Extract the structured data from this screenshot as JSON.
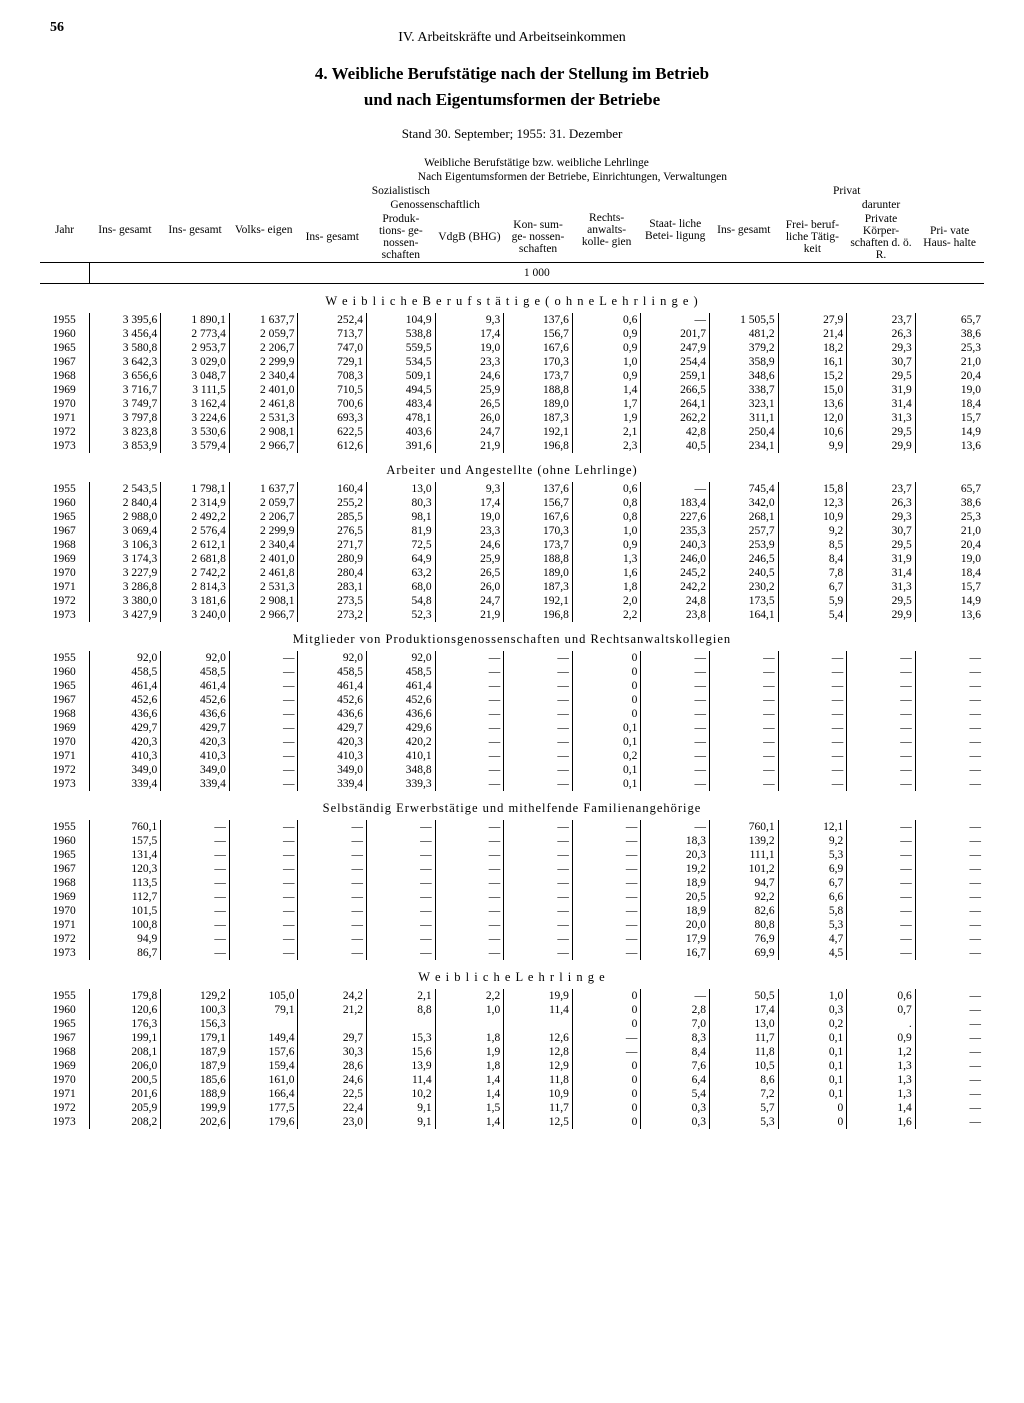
{
  "page_number": "56",
  "chapter": "IV. Arbeitskräfte und Arbeitseinkommen",
  "title_line1": "4. Weibliche Berufstätige nach der Stellung im Betrieb",
  "title_line2": "und nach Eigentumsformen der Betriebe",
  "standline": "Stand 30. September; 1955: 31. Dezember",
  "header_top": "Weibliche Berufstätige bzw. weibliche Lehrlinge",
  "header_eigentum": "Nach Eigentumsformen der Betriebe, Einrichtungen, Verwaltungen",
  "h_jahr": "Jahr",
  "h_insgesamt": "Ins-\ngesamt",
  "h_sozialistisch": "Sozialistisch",
  "h_genossen": "Genossenschaftlich",
  "h_volks": "Volks-\neigen",
  "h_prod": "Produk-\ntions-\nge-\nnossen-\nschaften",
  "h_vdgb": "VdgB\n(BHG)",
  "h_konsum": "Kon-\nsum-\nge-\nnossen-\nschaften",
  "h_rechts": "Rechts-\nanwalts-\nkolle-\ngien",
  "h_staat": "Staat-\nliche\nBetei-\nligung",
  "h_privat": "Privat",
  "h_darunter": "darunter",
  "h_frei": "Frei-\nberuf-\nliche\nTätig-\nkeit",
  "h_koerper": "Private\nKörper-\nschaften\nd. ö. R.",
  "h_haus": "Pri-\nvate\nHaus-\nhalte",
  "unit": "1 000",
  "sections": [
    {
      "title": "W e i b l i c h e  B e r u f s t ä t i g e  ( o h n e  L e h r l i n g e )",
      "rows": [
        [
          "1955",
          "3 395,6",
          "1 890,1",
          "1 637,7",
          "252,4",
          "104,9",
          "9,3",
          "137,6",
          "0,6",
          "—",
          "1 505,5",
          "27,9",
          "23,7",
          "65,7"
        ],
        [
          "1960",
          "3 456,4",
          "2 773,4",
          "2 059,7",
          "713,7",
          "538,8",
          "17,4",
          "156,7",
          "0,9",
          "201,7",
          "481,2",
          "21,4",
          "26,3",
          "38,6"
        ],
        [
          "1965",
          "3 580,8",
          "2 953,7",
          "2 206,7",
          "747,0",
          "559,5",
          "19,0",
          "167,6",
          "0,9",
          "247,9",
          "379,2",
          "18,2",
          "29,3",
          "25,3"
        ],
        [
          "1967",
          "3 642,3",
          "3 029,0",
          "2 299,9",
          "729,1",
          "534,5",
          "23,3",
          "170,3",
          "1,0",
          "254,4",
          "358,9",
          "16,1",
          "30,7",
          "21,0"
        ],
        [
          "1968",
          "3 656,6",
          "3 048,7",
          "2 340,4",
          "708,3",
          "509,1",
          "24,6",
          "173,7",
          "0,9",
          "259,1",
          "348,6",
          "15,2",
          "29,5",
          "20,4"
        ],
        [
          "1969",
          "3 716,7",
          "3 111,5",
          "2 401,0",
          "710,5",
          "494,5",
          "25,9",
          "188,8",
          "1,4",
          "266,5",
          "338,7",
          "15,0",
          "31,9",
          "19,0"
        ],
        [
          "1970",
          "3 749,7",
          "3 162,4",
          "2 461,8",
          "700,6",
          "483,4",
          "26,5",
          "189,0",
          "1,7",
          "264,1",
          "323,1",
          "13,6",
          "31,4",
          "18,4"
        ],
        [
          "1971",
          "3 797,8",
          "3 224,6",
          "2 531,3",
          "693,3",
          "478,1",
          "26,0",
          "187,3",
          "1,9",
          "262,2",
          "311,1",
          "12,0",
          "31,3",
          "15,7"
        ],
        [
          "1972",
          "3 823,8",
          "3 530,6",
          "2 908,1",
          "622,5",
          "403,6",
          "24,7",
          "192,1",
          "2,1",
          "42,8",
          "250,4",
          "10,6",
          "29,5",
          "14,9"
        ],
        [
          "1973",
          "3 853,9",
          "3 579,4",
          "2 966,7",
          "612,6",
          "391,6",
          "21,9",
          "196,8",
          "2,3",
          "40,5",
          "234,1",
          "9,9",
          "29,9",
          "13,6"
        ]
      ]
    },
    {
      "title": "Arbeiter und Angestellte (ohne Lehrlinge)",
      "rows": [
        [
          "1955",
          "2 543,5",
          "1 798,1",
          "1 637,7",
          "160,4",
          "13,0",
          "9,3",
          "137,6",
          "0,6",
          "—",
          "745,4",
          "15,8",
          "23,7",
          "65,7"
        ],
        [
          "1960",
          "2 840,4",
          "2 314,9",
          "2 059,7",
          "255,2",
          "80,3",
          "17,4",
          "156,7",
          "0,8",
          "183,4",
          "342,0",
          "12,3",
          "26,3",
          "38,6"
        ],
        [
          "1965",
          "2 988,0",
          "2 492,2",
          "2 206,7",
          "285,5",
          "98,1",
          "19,0",
          "167,6",
          "0,8",
          "227,6",
          "268,1",
          "10,9",
          "29,3",
          "25,3"
        ],
        [
          "1967",
          "3 069,4",
          "2 576,4",
          "2 299,9",
          "276,5",
          "81,9",
          "23,3",
          "170,3",
          "1,0",
          "235,3",
          "257,7",
          "9,2",
          "30,7",
          "21,0"
        ],
        [
          "1968",
          "3 106,3",
          "2 612,1",
          "2 340,4",
          "271,7",
          "72,5",
          "24,6",
          "173,7",
          "0,9",
          "240,3",
          "253,9",
          "8,5",
          "29,5",
          "20,4"
        ],
        [
          "1969",
          "3 174,3",
          "2 681,8",
          "2 401,0",
          "280,9",
          "64,9",
          "25,9",
          "188,8",
          "1,3",
          "246,0",
          "246,5",
          "8,4",
          "31,9",
          "19,0"
        ],
        [
          "1970",
          "3 227,9",
          "2 742,2",
          "2 461,8",
          "280,4",
          "63,2",
          "26,5",
          "189,0",
          "1,6",
          "245,2",
          "240,5",
          "7,8",
          "31,4",
          "18,4"
        ],
        [
          "1971",
          "3 286,8",
          "2 814,3",
          "2 531,3",
          "283,1",
          "68,0",
          "26,0",
          "187,3",
          "1,8",
          "242,2",
          "230,2",
          "6,7",
          "31,3",
          "15,7"
        ],
        [
          "1972",
          "3 380,0",
          "3 181,6",
          "2 908,1",
          "273,5",
          "54,8",
          "24,7",
          "192,1",
          "2,0",
          "24,8",
          "173,5",
          "5,9",
          "29,5",
          "14,9"
        ],
        [
          "1973",
          "3 427,9",
          "3 240,0",
          "2 966,7",
          "273,2",
          "52,3",
          "21,9",
          "196,8",
          "2,2",
          "23,8",
          "164,1",
          "5,4",
          "29,9",
          "13,6"
        ]
      ]
    },
    {
      "title": "Mitglieder von Produktionsgenossenschaften und Rechtsanwaltskollegien",
      "rows": [
        [
          "1955",
          "92,0",
          "92,0",
          "—",
          "92,0",
          "92,0",
          "—",
          "—",
          "0",
          "—",
          "—",
          "—",
          "—",
          "—"
        ],
        [
          "1960",
          "458,5",
          "458,5",
          "—",
          "458,5",
          "458,5",
          "—",
          "—",
          "0",
          "—",
          "—",
          "—",
          "—",
          "—"
        ],
        [
          "1965",
          "461,4",
          "461,4",
          "—",
          "461,4",
          "461,4",
          "—",
          "—",
          "0",
          "—",
          "—",
          "—",
          "—",
          "—"
        ],
        [
          "1967",
          "452,6",
          "452,6",
          "—",
          "452,6",
          "452,6",
          "—",
          "—",
          "0",
          "—",
          "—",
          "—",
          "—",
          "—"
        ],
        [
          "1968",
          "436,6",
          "436,6",
          "—",
          "436,6",
          "436,6",
          "—",
          "—",
          "0",
          "—",
          "—",
          "—",
          "—",
          "—"
        ],
        [
          "1969",
          "429,7",
          "429,7",
          "—",
          "429,7",
          "429,6",
          "—",
          "—",
          "0,1",
          "—",
          "—",
          "—",
          "—",
          "—"
        ],
        [
          "1970",
          "420,3",
          "420,3",
          "—",
          "420,3",
          "420,2",
          "—",
          "—",
          "0,1",
          "—",
          "—",
          "—",
          "—",
          "—"
        ],
        [
          "1971",
          "410,3",
          "410,3",
          "—",
          "410,3",
          "410,1",
          "—",
          "—",
          "0,2",
          "—",
          "—",
          "—",
          "—",
          "—"
        ],
        [
          "1972",
          "349,0",
          "349,0",
          "—",
          "349,0",
          "348,8",
          "—",
          "—",
          "0,1",
          "—",
          "—",
          "—",
          "—",
          "—"
        ],
        [
          "1973",
          "339,4",
          "339,4",
          "—",
          "339,4",
          "339,3",
          "—",
          "—",
          "0,1",
          "—",
          "—",
          "—",
          "—",
          "—"
        ]
      ]
    },
    {
      "title": "Selbständig Erwerbstätige und mithelfende Familienangehörige",
      "rows": [
        [
          "1955",
          "760,1",
          "—",
          "—",
          "—",
          "—",
          "—",
          "—",
          "—",
          "—",
          "760,1",
          "12,1",
          "—",
          "—"
        ],
        [
          "1960",
          "157,5",
          "—",
          "—",
          "—",
          "—",
          "—",
          "—",
          "—",
          "18,3",
          "139,2",
          "9,2",
          "—",
          "—"
        ],
        [
          "1965",
          "131,4",
          "—",
          "—",
          "—",
          "—",
          "—",
          "—",
          "—",
          "20,3",
          "111,1",
          "5,3",
          "—",
          "—"
        ],
        [
          "1967",
          "120,3",
          "—",
          "—",
          "—",
          "—",
          "—",
          "—",
          "—",
          "19,2",
          "101,2",
          "6,9",
          "—",
          "—"
        ],
        [
          "1968",
          "113,5",
          "—",
          "—",
          "—",
          "—",
          "—",
          "—",
          "—",
          "18,9",
          "94,7",
          "6,7",
          "—",
          "—"
        ],
        [
          "1969",
          "112,7",
          "—",
          "—",
          "—",
          "—",
          "—",
          "—",
          "—",
          "20,5",
          "92,2",
          "6,6",
          "—",
          "—"
        ],
        [
          "1970",
          "101,5",
          "—",
          "—",
          "—",
          "—",
          "—",
          "—",
          "—",
          "18,9",
          "82,6",
          "5,8",
          "—",
          "—"
        ],
        [
          "1971",
          "100,8",
          "—",
          "—",
          "—",
          "—",
          "—",
          "—",
          "—",
          "20,0",
          "80,8",
          "5,3",
          "—",
          "—"
        ],
        [
          "1972",
          "94,9",
          "—",
          "—",
          "—",
          "—",
          "—",
          "—",
          "—",
          "17,9",
          "76,9",
          "4,7",
          "—",
          "—"
        ],
        [
          "1973",
          "86,7",
          "—",
          "—",
          "—",
          "—",
          "—",
          "—",
          "—",
          "16,7",
          "69,9",
          "4,5",
          "—",
          "—"
        ]
      ]
    },
    {
      "title": "W e i b l i c h e  L e h r l i n g e",
      "rows": [
        [
          "1955",
          "179,8",
          "129,2",
          "105,0",
          "24,2",
          "2,1",
          "2,2",
          "19,9",
          "0",
          "—",
          "50,5",
          "1,0",
          "0,6",
          "—"
        ],
        [
          "1960",
          "120,6",
          "100,3",
          "79,1",
          "21,2",
          "8,8",
          "1,0",
          "11,4",
          "0",
          "2,8",
          "17,4",
          "0,3",
          "0,7",
          "—"
        ],
        [
          "1965",
          "176,3",
          "156,3",
          "",
          "",
          "",
          "",
          "",
          "0",
          "7,0",
          "13,0",
          "0,2",
          ".",
          "—"
        ],
        [
          "1967",
          "199,1",
          "179,1",
          "149,4",
          "29,7",
          "15,3",
          "1,8",
          "12,6",
          "—",
          "8,3",
          "11,7",
          "0,1",
          "0,9",
          "—"
        ],
        [
          "1968",
          "208,1",
          "187,9",
          "157,6",
          "30,3",
          "15,6",
          "1,9",
          "12,8",
          "—",
          "8,4",
          "11,8",
          "0,1",
          "1,2",
          "—"
        ],
        [
          "1969",
          "206,0",
          "187,9",
          "159,4",
          "28,6",
          "13,9",
          "1,8",
          "12,9",
          "0",
          "7,6",
          "10,5",
          "0,1",
          "1,3",
          "—"
        ],
        [
          "1970",
          "200,5",
          "185,6",
          "161,0",
          "24,6",
          "11,4",
          "1,4",
          "11,8",
          "0",
          "6,4",
          "8,6",
          "0,1",
          "1,3",
          "—"
        ],
        [
          "1971",
          "201,6",
          "188,9",
          "166,4",
          "22,5",
          "10,2",
          "1,4",
          "10,9",
          "0",
          "5,4",
          "7,2",
          "0,1",
          "1,3",
          "—"
        ],
        [
          "1972",
          "205,9",
          "199,9",
          "177,5",
          "22,4",
          "9,1",
          "1,5",
          "11,7",
          "0",
          "0,3",
          "5,7",
          "0",
          "1,4",
          "—"
        ],
        [
          "1973",
          "208,2",
          "202,6",
          "179,6",
          "23,0",
          "9,1",
          "1,4",
          "12,5",
          "0",
          "0,3",
          "5,3",
          "0",
          "1,6",
          "—"
        ]
      ]
    }
  ]
}
